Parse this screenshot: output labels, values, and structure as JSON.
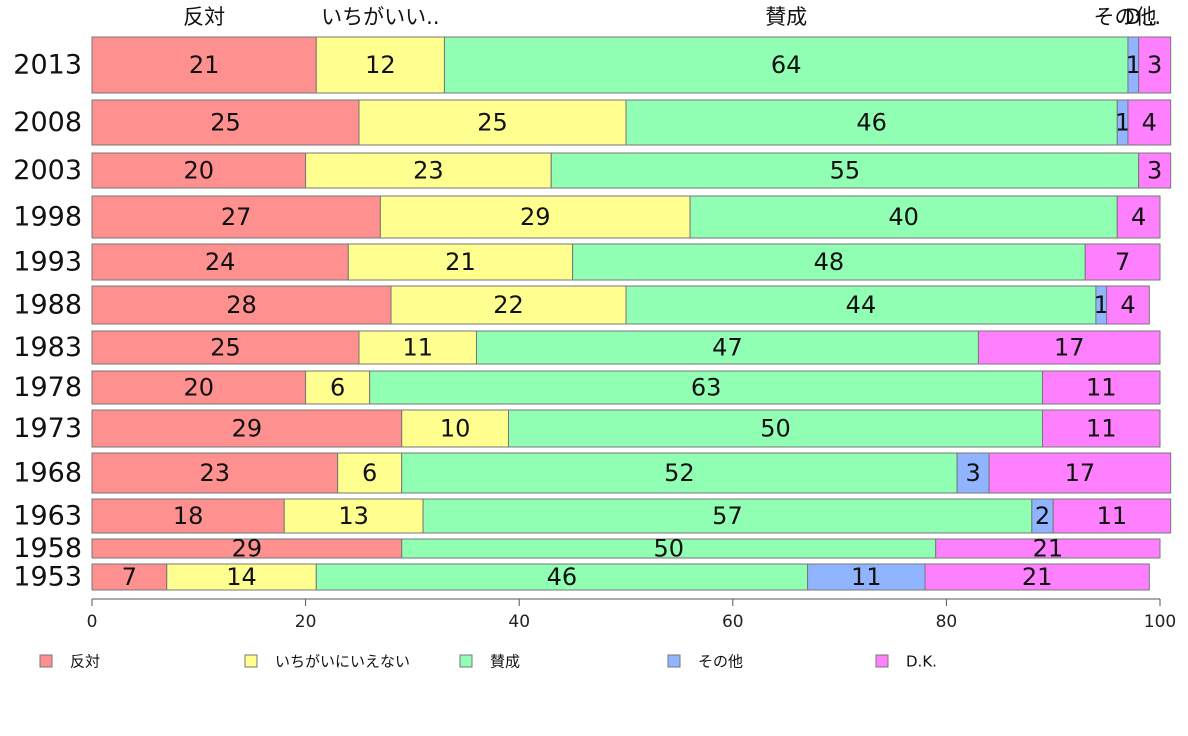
{
  "chart_data": {
    "type": "bar",
    "orientation": "horizontal",
    "stacked": true,
    "categories": [
      "2013",
      "2008",
      "2003",
      "1998",
      "1993",
      "1988",
      "1983",
      "1978",
      "1973",
      "1968",
      "1963",
      "1958",
      "1953"
    ],
    "series": [
      {
        "name": "反対",
        "color": "#ff9090",
        "values": [
          21,
          25,
          20,
          27,
          24,
          28,
          25,
          20,
          29,
          23,
          18,
          29,
          7
        ]
      },
      {
        "name": "いちがいにいえない",
        "color": "#ffff90",
        "values": [
          12,
          25,
          23,
          29,
          21,
          22,
          11,
          6,
          10,
          6,
          13,
          0,
          14
        ]
      },
      {
        "name": "賛成",
        "color": "#90ffb4",
        "values": [
          64,
          46,
          55,
          40,
          48,
          44,
          47,
          63,
          50,
          52,
          57,
          50,
          46
        ]
      },
      {
        "name": "その他",
        "color": "#90b4ff",
        "values": [
          1,
          1,
          0,
          0,
          0,
          1,
          0,
          0,
          0,
          3,
          2,
          0,
          11
        ]
      },
      {
        "name": "D.K.",
        "color": "#ff80ff",
        "values": [
          3,
          4,
          3,
          4,
          7,
          4,
          17,
          11,
          11,
          17,
          11,
          21,
          21
        ]
      }
    ],
    "segment_labels": [
      [
        "21",
        "12",
        "64",
        "1",
        "3"
      ],
      [
        "25",
        "25",
        "46",
        "1",
        "4"
      ],
      [
        "20",
        "23",
        "55",
        "",
        "3"
      ],
      [
        "27",
        "29",
        "40",
        "",
        "4"
      ],
      [
        "24",
        "21",
        "48",
        "",
        "7"
      ],
      [
        "28",
        "22",
        "44",
        "1",
        "4"
      ],
      [
        "25",
        "11",
        "47",
        "",
        "17"
      ],
      [
        "20",
        "6",
        "63",
        "",
        "11"
      ],
      [
        "29",
        "10",
        "50",
        "",
        "11"
      ],
      [
        "23",
        "6",
        "52",
        "3",
        "17"
      ],
      [
        "18",
        "13",
        "57",
        "2",
        "11"
      ],
      [
        "29",
        "",
        "50",
        "",
        "21"
      ],
      [
        "7",
        "14",
        "46",
        "11",
        "21"
      ]
    ],
    "top_labels": [
      "反対",
      "いちがいい..",
      "賛成",
      "その他",
      "D..."
    ],
    "x_ticks": [
      0,
      20,
      40,
      60,
      80,
      100
    ],
    "xlim": [
      0,
      100
    ],
    "legend": {
      "position": "bottom"
    }
  }
}
